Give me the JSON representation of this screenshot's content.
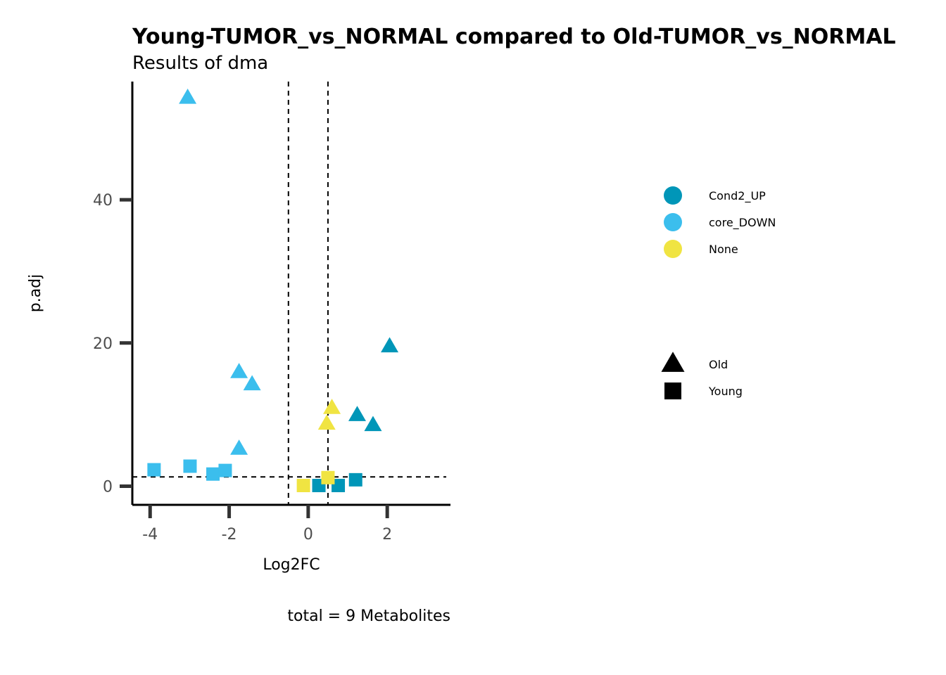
{
  "chart_data": {
    "type": "scatter",
    "title": "Young-TUMOR_vs_NORMAL compared to Old-TUMOR_vs_NORMAL",
    "subtitle": "Results of dma",
    "xlabel": "Log2FC",
    "ylabel": "p.adj",
    "caption": "total = 9 Metabolites",
    "xlim": [
      -4.45,
      3.6
    ],
    "ylim": [
      -2.6,
      56.5
    ],
    "x_ticks": [
      -4,
      -2,
      0,
      2
    ],
    "y_ticks": [
      0,
      20,
      40
    ],
    "x_tick_labels": [
      "-4",
      "-2",
      "0",
      "2"
    ],
    "y_tick_labels": [
      "0",
      "20",
      "40"
    ],
    "vlines": [
      -0.5,
      0.5
    ],
    "hline": 1.3,
    "grid": false,
    "color_legend": {
      "placement": "right",
      "entries": [
        {
          "label": "Cond2_UP",
          "color": "#0096b8"
        },
        {
          "label": "core_DOWN",
          "color": "#3bbeed"
        },
        {
          "label": "None",
          "color": "#f0e442"
        }
      ]
    },
    "shape_legend": {
      "placement": "right",
      "entries": [
        {
          "label": "Old",
          "shape": "triangle"
        },
        {
          "label": "Young",
          "shape": "square"
        }
      ]
    },
    "points": [
      {
        "x": -3.05,
        "y": 54.2,
        "group": "core_DOWN",
        "shape": "triangle"
      },
      {
        "x": -1.75,
        "y": 15.9,
        "group": "core_DOWN",
        "shape": "triangle"
      },
      {
        "x": -1.42,
        "y": 14.2,
        "group": "core_DOWN",
        "shape": "triangle"
      },
      {
        "x": -1.75,
        "y": 5.2,
        "group": "core_DOWN",
        "shape": "triangle"
      },
      {
        "x": 2.06,
        "y": 19.5,
        "group": "Cond2_UP",
        "shape": "triangle"
      },
      {
        "x": 1.24,
        "y": 9.9,
        "group": "Cond2_UP",
        "shape": "triangle"
      },
      {
        "x": 1.64,
        "y": 8.5,
        "group": "Cond2_UP",
        "shape": "triangle"
      },
      {
        "x": 0.6,
        "y": 10.9,
        "group": "None",
        "shape": "triangle"
      },
      {
        "x": 0.47,
        "y": 8.7,
        "group": "None",
        "shape": "triangle"
      },
      {
        "x": -3.9,
        "y": 2.3,
        "group": "core_DOWN",
        "shape": "square"
      },
      {
        "x": -2.99,
        "y": 2.8,
        "group": "core_DOWN",
        "shape": "square"
      },
      {
        "x": -2.41,
        "y": 1.7,
        "group": "core_DOWN",
        "shape": "square"
      },
      {
        "x": -2.1,
        "y": 2.2,
        "group": "core_DOWN",
        "shape": "square"
      },
      {
        "x": 1.2,
        "y": 0.9,
        "group": "Cond2_UP",
        "shape": "square"
      },
      {
        "x": 0.27,
        "y": 0.1,
        "group": "Cond2_UP",
        "shape": "square"
      },
      {
        "x": 0.76,
        "y": 0.1,
        "group": "Cond2_UP",
        "shape": "square"
      },
      {
        "x": -0.12,
        "y": 0.1,
        "group": "None",
        "shape": "square"
      },
      {
        "x": 0.5,
        "y": 1.2,
        "group": "None",
        "shape": "square"
      }
    ]
  }
}
